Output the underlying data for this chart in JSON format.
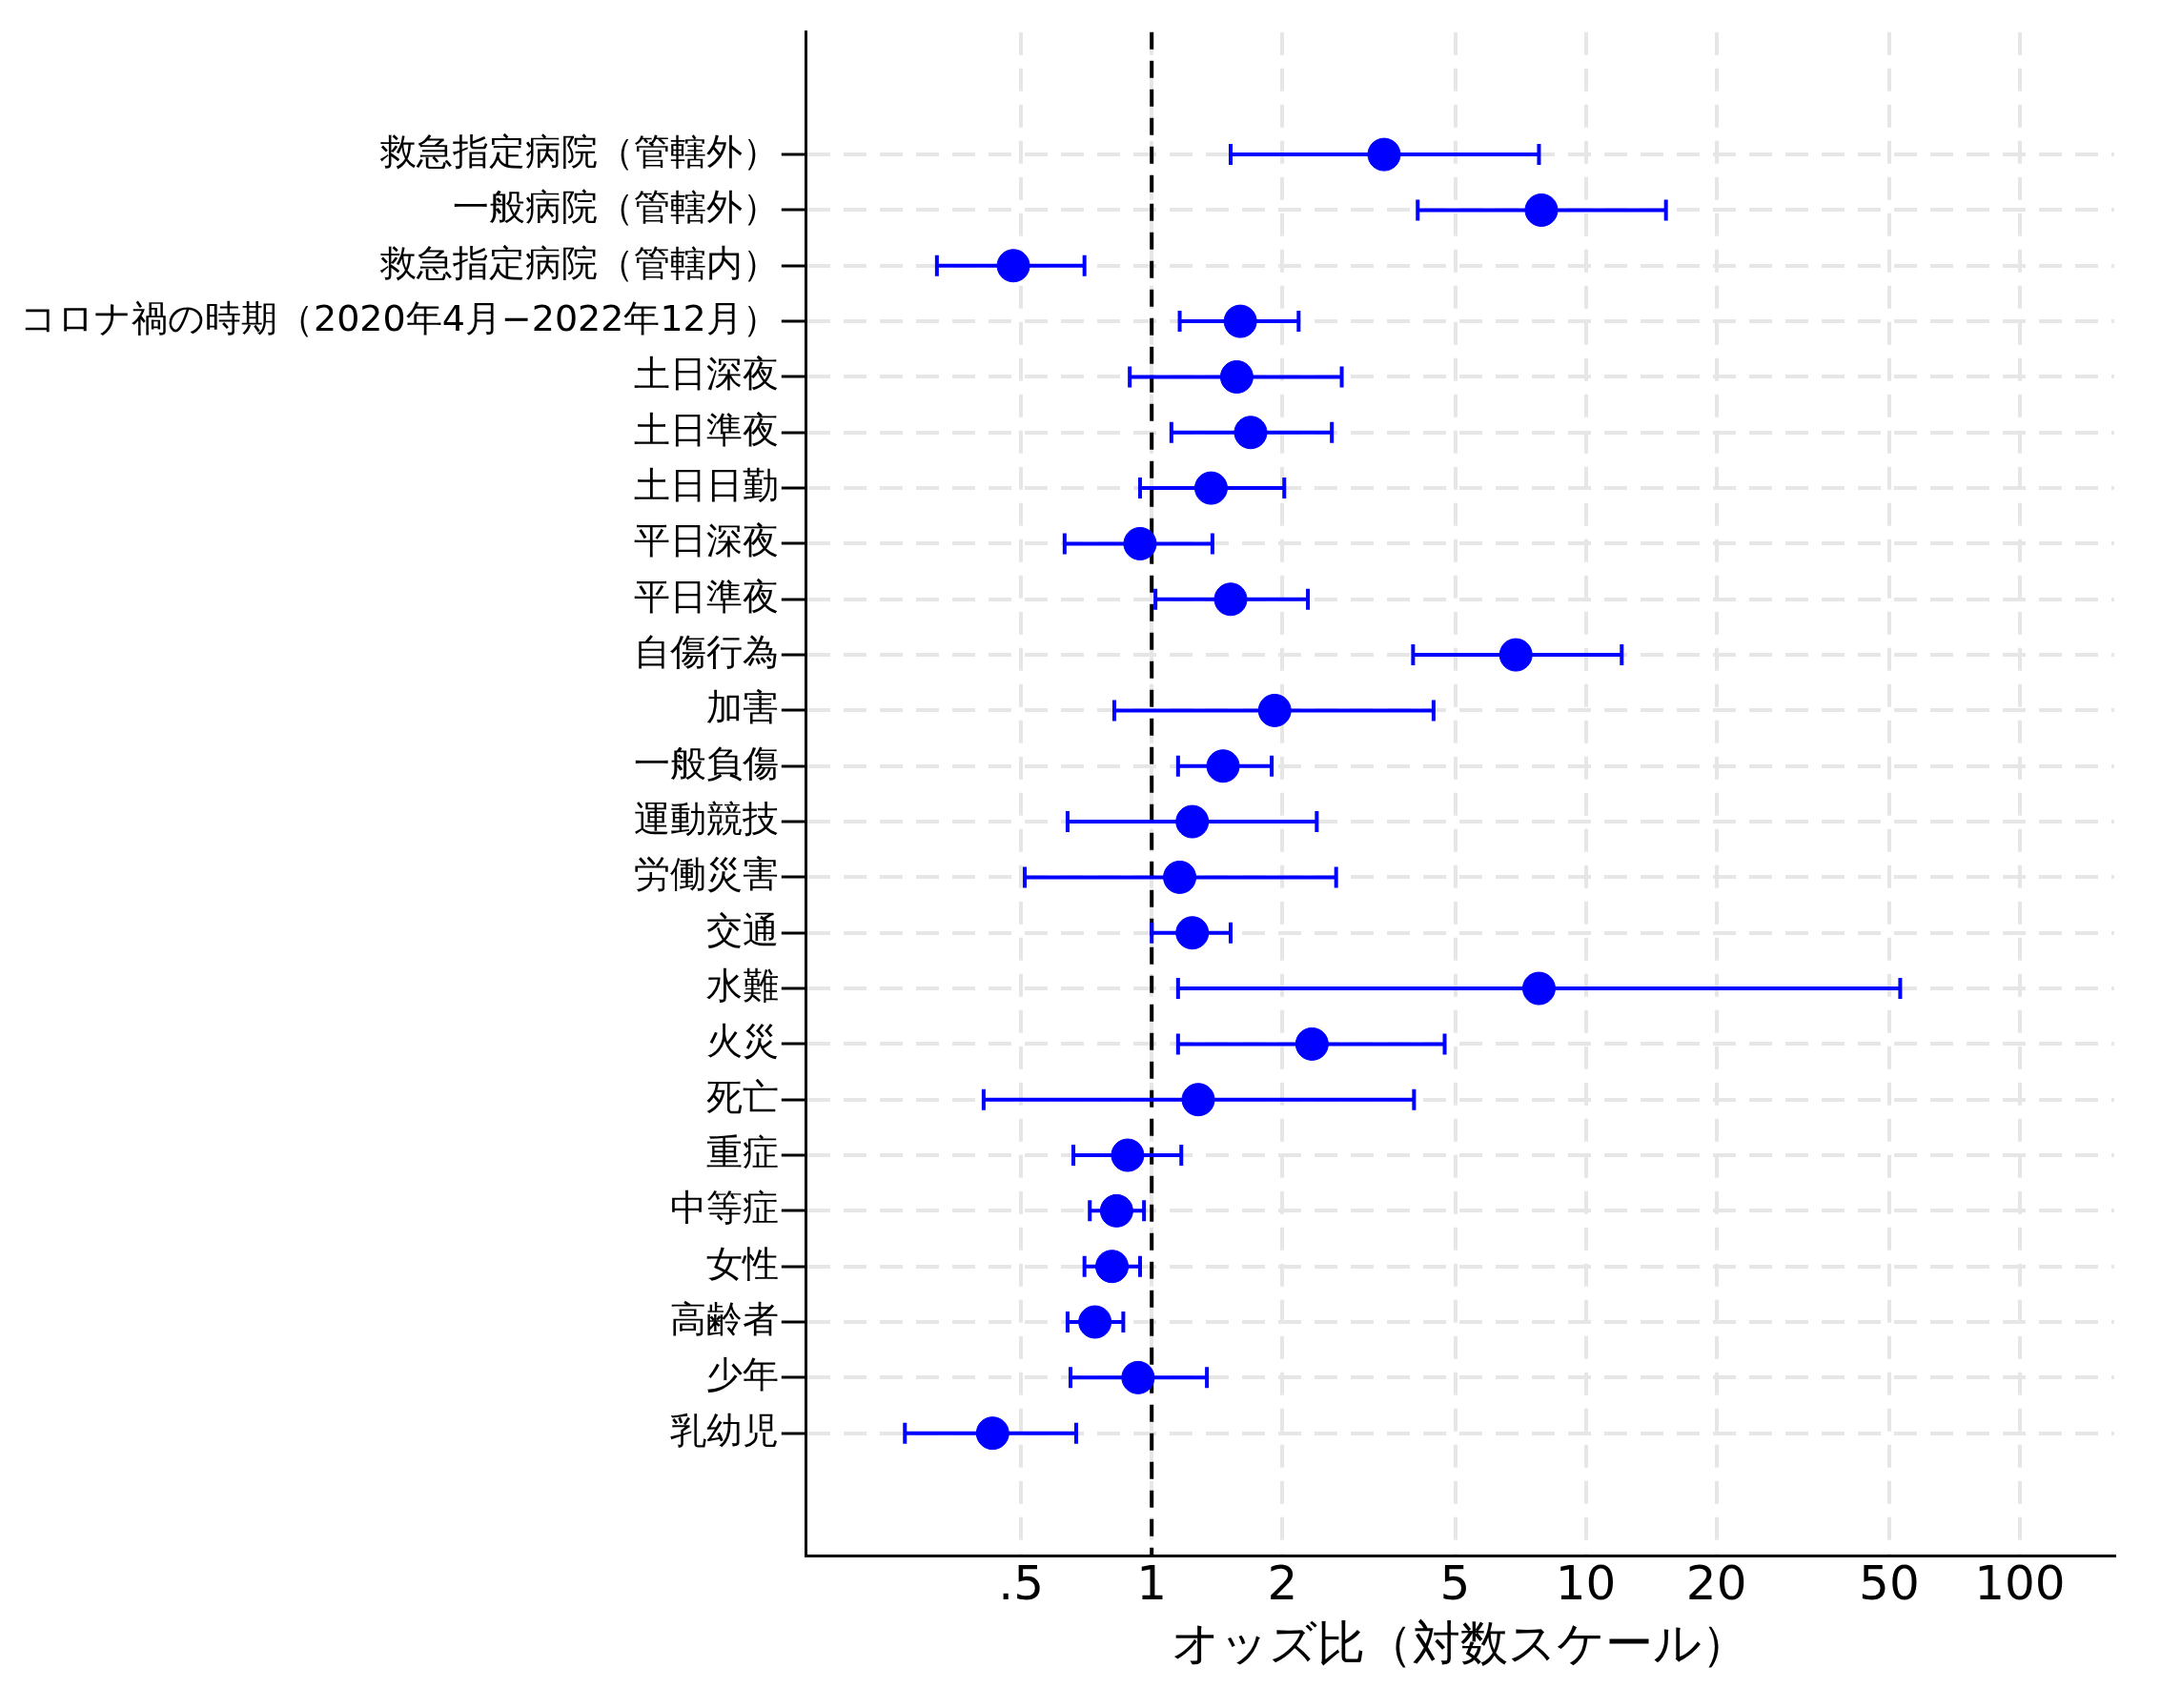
{
  "chart_data": {
    "type": "scatter",
    "orientation": "horizontal",
    "log": "x",
    "grid": true,
    "marker": "circle",
    "xlabel": "オッズ比（対数スケール）",
    "categories": [
      "救急指定病院（管轄外）",
      "一般病院（管轄外）",
      "救急指定病院（管轄内）",
      "コロナ禍の時期（2020年4月−2022年12月）",
      "土日深夜",
      "土日準夜",
      "土日日勤",
      "平日深夜",
      "平日準夜",
      "自傷行為",
      "加害",
      "一般負傷",
      "運動競技",
      "労働災害",
      "交通",
      "水難",
      "火災",
      "死亡",
      "重症",
      "中等症",
      "女性",
      "高齢者",
      "少年",
      "乳幼児"
    ],
    "series": [
      {
        "color": "#0000ff",
        "values": [
          3.43,
          7.9,
          0.48,
          1.6,
          1.57,
          1.69,
          1.37,
          0.94,
          1.52,
          6.9,
          1.92,
          1.46,
          1.24,
          1.16,
          1.24,
          7.8,
          2.34,
          1.28,
          0.88,
          0.83,
          0.81,
          0.74,
          0.93,
          0.43
        ],
        "errors": [
          [
            1.52,
            7.8
          ],
          [
            4.1,
            15.3
          ],
          [
            0.32,
            0.7
          ],
          [
            1.16,
            2.18
          ],
          [
            0.89,
            2.74
          ],
          [
            1.11,
            2.6
          ],
          [
            0.94,
            2.02
          ],
          [
            0.63,
            1.38
          ],
          [
            1.02,
            2.29
          ],
          [
            4.0,
            12.1
          ],
          [
            0.82,
            4.46
          ],
          [
            1.15,
            1.89
          ],
          [
            0.64,
            2.4
          ],
          [
            0.51,
            2.66
          ],
          [
            1.0,
            1.52
          ],
          [
            1.15,
            53
          ],
          [
            1.15,
            4.73
          ],
          [
            0.41,
            4.02
          ],
          [
            0.66,
            1.17
          ],
          [
            0.72,
            0.96
          ],
          [
            0.7,
            0.94
          ],
          [
            0.64,
            0.86
          ],
          [
            0.65,
            1.34
          ],
          [
            0.27,
            0.67
          ]
        ]
      }
    ],
    "xlim": [
      0.16,
      165
    ],
    "xticks": [
      {
        "value": 0.5,
        "label": ".5"
      },
      1,
      2,
      5,
      10,
      20,
      50,
      100
    ],
    "ref_lines": [
      {
        "axis": "x",
        "value": 1,
        "color": "#000000",
        "line_style": "dashed"
      }
    ]
  }
}
